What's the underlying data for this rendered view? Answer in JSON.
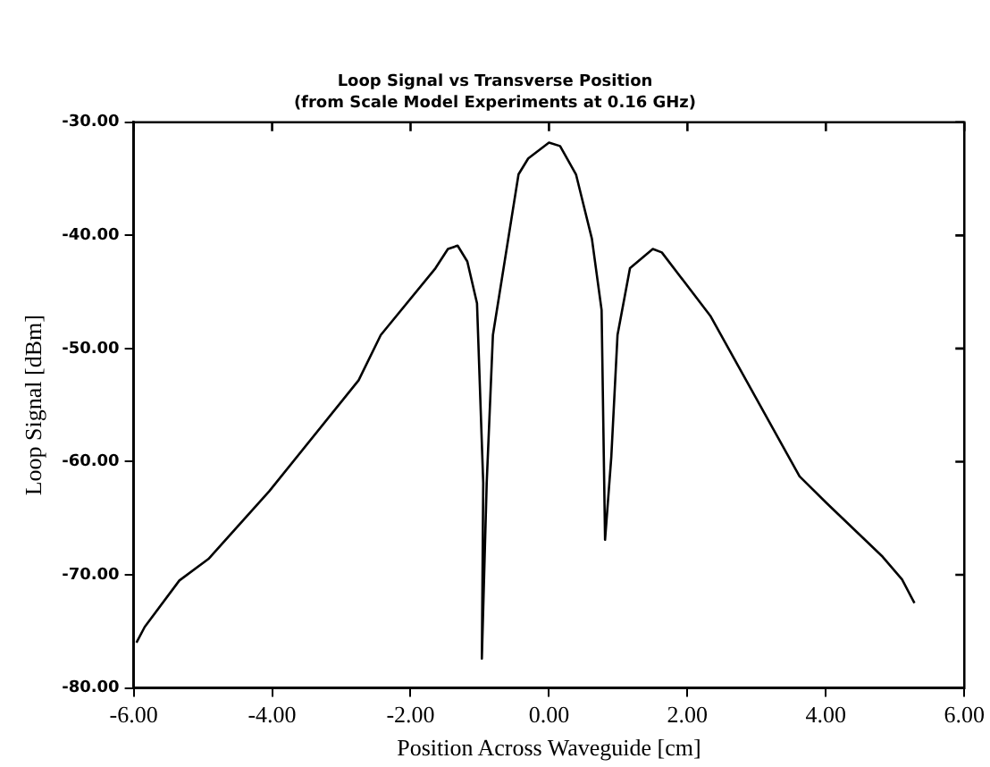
{
  "chart_data": {
    "type": "line",
    "title": "Loop Signal vs Transverse Position",
    "subtitle": "(from Scale Model Experiments at 0.16 GHz)",
    "xlabel": "Position Across Waveguide [cm]",
    "ylabel": "Loop Signal [dBm]",
    "x": [
      -5.96,
      -5.84,
      -5.34,
      -4.92,
      -4.04,
      -2.75,
      -2.43,
      -1.64,
      -1.46,
      -1.32,
      -1.18,
      -1.04,
      -0.95,
      -0.97,
      -0.9,
      -0.81,
      -0.44,
      -0.3,
      0.0,
      0.16,
      0.39,
      0.62,
      0.76,
      0.81,
      0.9,
      0.99,
      1.17,
      1.5,
      1.63,
      2.33,
      3.62,
      4.0,
      4.82,
      5.1,
      5.28
    ],
    "series": [
      {
        "color": "#000000",
        "values": [
          -76.0,
          -74.6,
          -70.5,
          -68.6,
          -62.6,
          -52.8,
          -48.8,
          -42.9,
          -41.2,
          -40.9,
          -42.3,
          -46.0,
          -61.9,
          -77.4,
          -61.9,
          -48.8,
          -34.6,
          -33.2,
          -31.8,
          -32.1,
          -34.6,
          -40.3,
          -46.6,
          -66.9,
          -59.6,
          -48.8,
          -42.9,
          -41.2,
          -41.5,
          -47.1,
          -61.3,
          -63.6,
          -68.4,
          -70.4,
          -72.5
        ]
      }
    ],
    "xlim": [
      -6,
      6
    ],
    "xticks": [
      {
        "value": -6,
        "label": "-6.00"
      },
      {
        "value": -4,
        "label": "-4.00"
      },
      {
        "value": -2,
        "label": "-2.00"
      },
      {
        "value": 0,
        "label": "0.00"
      },
      {
        "value": 2,
        "label": "2.00"
      },
      {
        "value": 4,
        "label": "4.00"
      },
      {
        "value": 6,
        "label": "6.00"
      }
    ],
    "ylim": [
      -80,
      -30
    ],
    "yticks": [
      {
        "value": -80,
        "label": "-80.00"
      },
      {
        "value": -70,
        "label": "-70.00"
      },
      {
        "value": -60,
        "label": "-60.00"
      },
      {
        "value": -50,
        "label": "-50.00"
      },
      {
        "value": -40,
        "label": "-40.00"
      },
      {
        "value": -30,
        "label": "-30.00"
      }
    ],
    "grid": false,
    "legend": false,
    "marker": "none",
    "line_style": "solid"
  }
}
